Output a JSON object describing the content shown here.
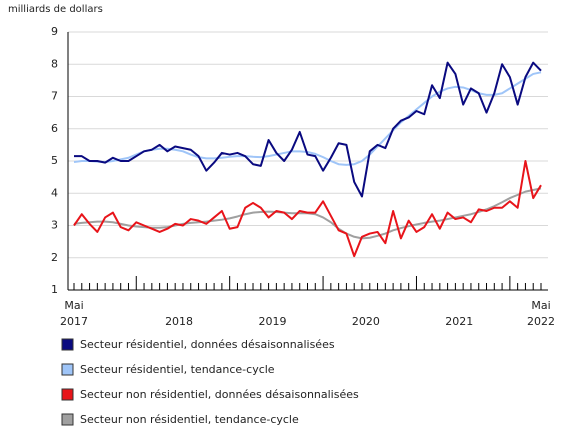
{
  "chart_data": {
    "type": "line",
    "y_axis_label": "milliards de dollars",
    "categories": [
      "Mai",
      null,
      null,
      null,
      null,
      null,
      null,
      null,
      null,
      null,
      null,
      null,
      null,
      null,
      null,
      null,
      null,
      null,
      null,
      null,
      null,
      null,
      null,
      null,
      null,
      null,
      null,
      null,
      null,
      null,
      null,
      null,
      null,
      null,
      null,
      null,
      null,
      null,
      null,
      null,
      null,
      null,
      null,
      null,
      null,
      null,
      null,
      null,
      null,
      null,
      null,
      null,
      null,
      null,
      null,
      null,
      null,
      null,
      null,
      null,
      "Mai"
    ],
    "year_labels": [
      "2017",
      "2018",
      "2019",
      "2020",
      "2021",
      "2022"
    ],
    "ylim": [
      1,
      9
    ],
    "yticks": [
      1,
      2,
      3,
      4,
      5,
      6,
      7,
      8,
      9
    ],
    "grid": true,
    "series": [
      {
        "name": "Secteur résidentiel, données désaisonnalisées",
        "color": "#0a0a80",
        "values": [
          5.15,
          5.15,
          5.0,
          5.0,
          4.95,
          5.1,
          5.0,
          5.0,
          5.15,
          5.3,
          5.35,
          5.5,
          5.3,
          5.45,
          5.4,
          5.35,
          5.15,
          4.7,
          4.95,
          5.25,
          5.2,
          5.25,
          5.15,
          4.9,
          4.85,
          5.65,
          5.25,
          5.0,
          5.35,
          5.9,
          5.2,
          5.15,
          4.7,
          5.1,
          5.55,
          5.5,
          4.35,
          3.9,
          5.3,
          5.5,
          5.4,
          6.0,
          6.25,
          6.35,
          6.55,
          6.45,
          7.35,
          6.95,
          8.05,
          7.7,
          6.75,
          7.25,
          7.1,
          6.5,
          7.1,
          8.0,
          7.6,
          6.75,
          7.6,
          8.05,
          7.8
        ]
      },
      {
        "name": "Secteur résidentiel, tendance-cycle",
        "color": "#9fc5f8",
        "values": [
          4.97,
          5.0,
          5.0,
          4.98,
          4.97,
          5.0,
          5.05,
          5.1,
          5.2,
          5.3,
          5.35,
          5.38,
          5.38,
          5.35,
          5.3,
          5.2,
          5.12,
          5.08,
          5.08,
          5.1,
          5.13,
          5.15,
          5.15,
          5.13,
          5.12,
          5.15,
          5.2,
          5.25,
          5.3,
          5.3,
          5.28,
          5.22,
          5.12,
          5.0,
          4.9,
          4.88,
          4.9,
          5.0,
          5.2,
          5.45,
          5.7,
          5.95,
          6.2,
          6.4,
          6.6,
          6.8,
          7.0,
          7.15,
          7.25,
          7.3,
          7.28,
          7.2,
          7.1,
          7.05,
          7.05,
          7.1,
          7.25,
          7.4,
          7.55,
          7.7,
          7.75
        ]
      },
      {
        "name": "Secteur non résidentiel, données désaisonnalisées",
        "color": "#e8141a",
        "values": [
          3.0,
          3.35,
          3.05,
          2.8,
          3.25,
          3.4,
          2.95,
          2.85,
          3.1,
          3.0,
          2.9,
          2.8,
          2.9,
          3.05,
          3.0,
          3.2,
          3.15,
          3.05,
          3.25,
          3.45,
          2.9,
          2.95,
          3.55,
          3.7,
          3.55,
          3.25,
          3.45,
          3.4,
          3.2,
          3.45,
          3.4,
          3.4,
          3.75,
          3.3,
          2.85,
          2.75,
          2.05,
          2.65,
          2.75,
          2.8,
          2.45,
          3.45,
          2.6,
          3.15,
          2.8,
          2.95,
          3.35,
          2.9,
          3.4,
          3.2,
          3.25,
          3.1,
          3.5,
          3.45,
          3.55,
          3.55,
          3.75,
          3.55,
          5.0,
          3.85,
          4.25
        ]
      },
      {
        "name": "Secteur non résidentiel, tendance-cycle",
        "color": "#a0a0a0",
        "values": [
          3.05,
          3.08,
          3.1,
          3.12,
          3.12,
          3.1,
          3.05,
          3.0,
          2.97,
          2.95,
          2.93,
          2.93,
          2.95,
          3.0,
          3.05,
          3.08,
          3.1,
          3.12,
          3.15,
          3.18,
          3.22,
          3.28,
          3.35,
          3.4,
          3.42,
          3.43,
          3.42,
          3.4,
          3.38,
          3.38,
          3.38,
          3.35,
          3.25,
          3.1,
          2.9,
          2.75,
          2.65,
          2.6,
          2.62,
          2.68,
          2.75,
          2.85,
          2.92,
          2.98,
          3.03,
          3.08,
          3.12,
          3.15,
          3.2,
          3.25,
          3.3,
          3.35,
          3.42,
          3.5,
          3.6,
          3.72,
          3.85,
          3.95,
          4.05,
          4.1,
          4.15
        ]
      }
    ]
  }
}
